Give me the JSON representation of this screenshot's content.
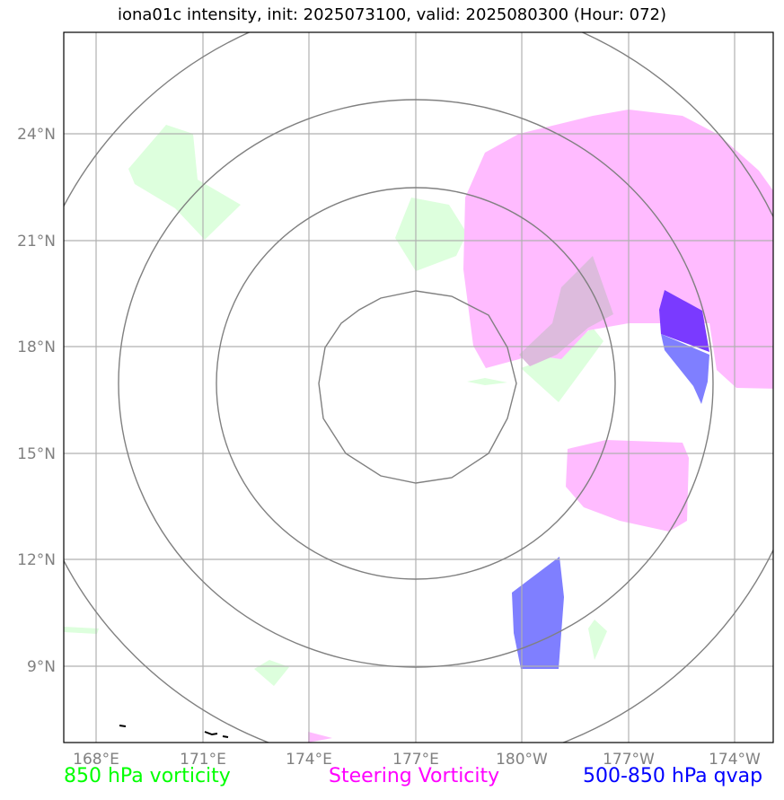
{
  "title": "iona01c intensity, init: 2025073100, valid: 2025080300 (Hour: 072)",
  "map": {
    "lon_ticks": [
      "168°E",
      "171°E",
      "174°E",
      "177°E",
      "180°W",
      "177°W",
      "174°W"
    ],
    "lat_ticks": [
      "24°N",
      "21°N",
      "18°N",
      "15°N",
      "12°N",
      "9°N"
    ],
    "center_label": "177°E 17°N",
    "range_rings": 4
  },
  "legend": {
    "vorticity": {
      "label": "850 hPa vorticity",
      "color": "#00ff00"
    },
    "steering": {
      "label": "Steering Vorticity",
      "color": "#ff00ff"
    },
    "qvap": {
      "label": "500-850 hPa qvap",
      "color": "#0000ff"
    }
  },
  "colors": {
    "vorticity_fill": "#ddffdd",
    "steering_fill": "#ffbbff",
    "qvap_fill": "#7f7fff",
    "qvap_dark": "#7a3aff",
    "grid": "#b0b0b0",
    "ring": "#808080"
  }
}
